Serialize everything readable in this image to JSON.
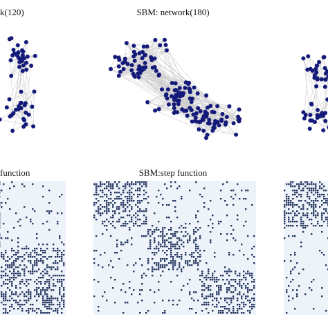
{
  "panels": [
    {
      "title": "k(120)"
    },
    {
      "title": "SBM: network(180)"
    },
    {
      "title": "function"
    },
    {
      "title": "SBM:step function"
    }
  ]
}
